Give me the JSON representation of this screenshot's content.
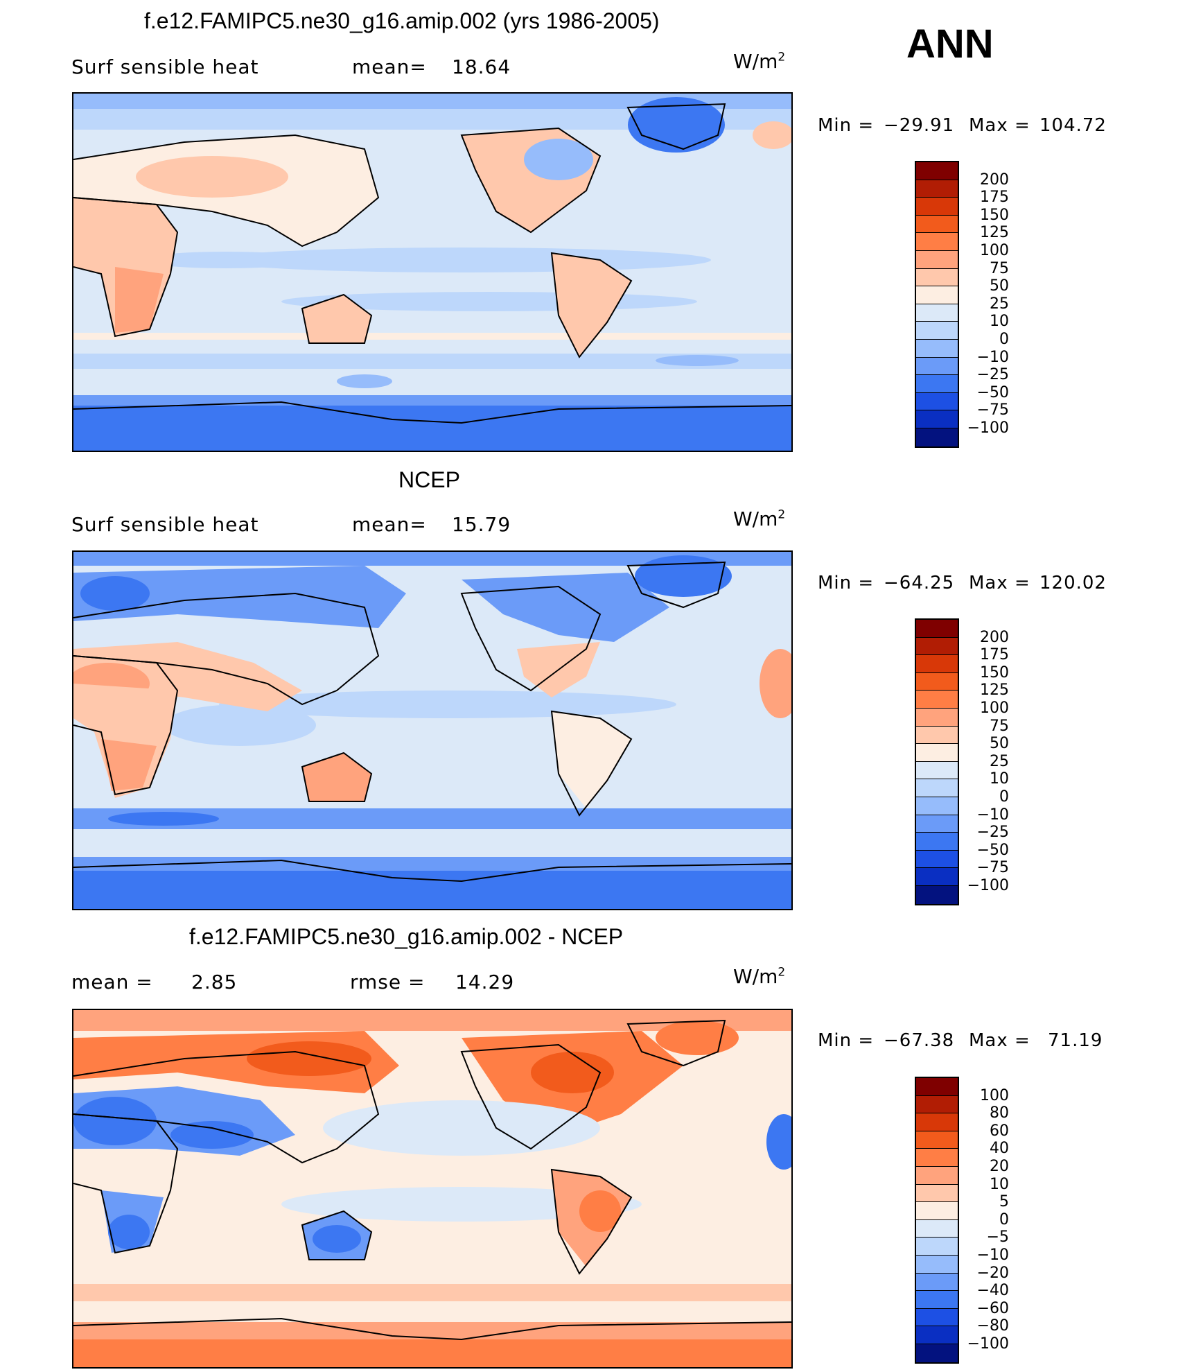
{
  "season": "ANN",
  "panels": [
    {
      "title": "f.e12.FAMIPC5.ne30_g16.amip.002 (yrs 1986-2005)",
      "left_label": "Surf  sensible  heat",
      "stat_label": "mean=",
      "stat_value": "18.64",
      "units_base": "W/m",
      "units_exp": "2",
      "min_label": "Min  =",
      "min_value": "−29.91",
      "max_label": "Max  =",
      "max_value": "104.72",
      "levels": [
        "200",
        "175",
        "150",
        "125",
        "100",
        "75",
        "50",
        "25",
        "10",
        "0",
        "−10",
        "−25",
        "−50",
        "−75",
        "−100"
      ],
      "colors": [
        "#7f0000",
        "#b11d04",
        "#d83808",
        "#f25b1c",
        "#ff7e45",
        "#ffa37d",
        "#ffc8ac",
        "#fdeee2",
        "#dce9f8",
        "#bdd7fb",
        "#96bcfb",
        "#6b9bf8",
        "#3c77f2",
        "#1d50e4",
        "#0a2fc2",
        "#03127f"
      ]
    },
    {
      "title": "NCEP",
      "left_label": "Surf  sensible  heat",
      "stat_label": "mean=",
      "stat_value": "15.79",
      "units_base": "W/m",
      "units_exp": "2",
      "min_label": "Min  =",
      "min_value": "−64.25",
      "max_label": "Max  =",
      "max_value": "120.02",
      "levels": [
        "200",
        "175",
        "150",
        "125",
        "100",
        "75",
        "50",
        "25",
        "10",
        "0",
        "−10",
        "−25",
        "−50",
        "−75",
        "−100"
      ],
      "colors": [
        "#7f0000",
        "#b11d04",
        "#d83808",
        "#f25b1c",
        "#ff7e45",
        "#ffa37d",
        "#ffc8ac",
        "#fdeee2",
        "#dce9f8",
        "#bdd7fb",
        "#96bcfb",
        "#6b9bf8",
        "#3c77f2",
        "#1d50e4",
        "#0a2fc2",
        "#03127f"
      ]
    },
    {
      "title": "f.e12.FAMIPC5.ne30_g16.amip.002 - NCEP",
      "left_label": "mean  =",
      "left_value": "2.85",
      "stat_label": "rmse  =",
      "stat_value": "14.29",
      "units_base": "W/m",
      "units_exp": "2",
      "min_label": "Min  =",
      "min_value": "−67.38",
      "max_label": "Max  =",
      "max_value": "71.19",
      "levels": [
        "100",
        "80",
        "60",
        "40",
        "20",
        "10",
        "5",
        "0",
        "−5",
        "−10",
        "−20",
        "−40",
        "−60",
        "−80",
        "−100"
      ],
      "colors": [
        "#7f0000",
        "#b11d04",
        "#d83808",
        "#f25b1c",
        "#ff7e45",
        "#ffa37d",
        "#ffc8ac",
        "#fdeee2",
        "#dce9f8",
        "#bdd7fb",
        "#96bcfb",
        "#6b9bf8",
        "#3c77f2",
        "#1d50e4",
        "#0a2fc2",
        "#03127f"
      ]
    }
  ]
}
